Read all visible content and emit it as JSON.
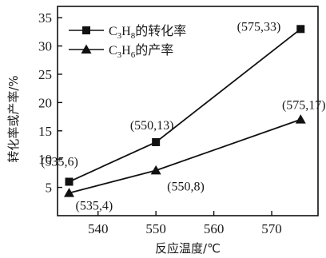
{
  "chart_data": {
    "type": "line",
    "xlabel": "反应温度/℃",
    "ylabel": "转化率或产率/%",
    "x": [
      535,
      550,
      575
    ],
    "xlim": [
      533,
      578
    ],
    "ylim": [
      0,
      37
    ],
    "xticks": [
      540,
      550,
      560,
      570
    ],
    "yticks": [
      5,
      10,
      15,
      20,
      25,
      30,
      35
    ],
    "grid": false,
    "legend_position": "top-left",
    "series": [
      {
        "name": "C3H8的转化率",
        "name_parts": {
          "pre": "C",
          "s1": "3",
          "mid": "H",
          "s2": "8",
          "post": "的转化率"
        },
        "marker": "square",
        "values": [
          6,
          13,
          33
        ],
        "labels": [
          "(535,6)",
          "(550,13)",
          "(575,33)"
        ]
      },
      {
        "name": "C3H6的产率",
        "name_parts": {
          "pre": "C",
          "s1": "3",
          "mid": "H",
          "s2": "6",
          "post": "的产率"
        },
        "marker": "triangle",
        "values": [
          4,
          8,
          17
        ],
        "labels": [
          "(535,4)",
          "(550,8)",
          "(575,17)"
        ]
      }
    ]
  }
}
